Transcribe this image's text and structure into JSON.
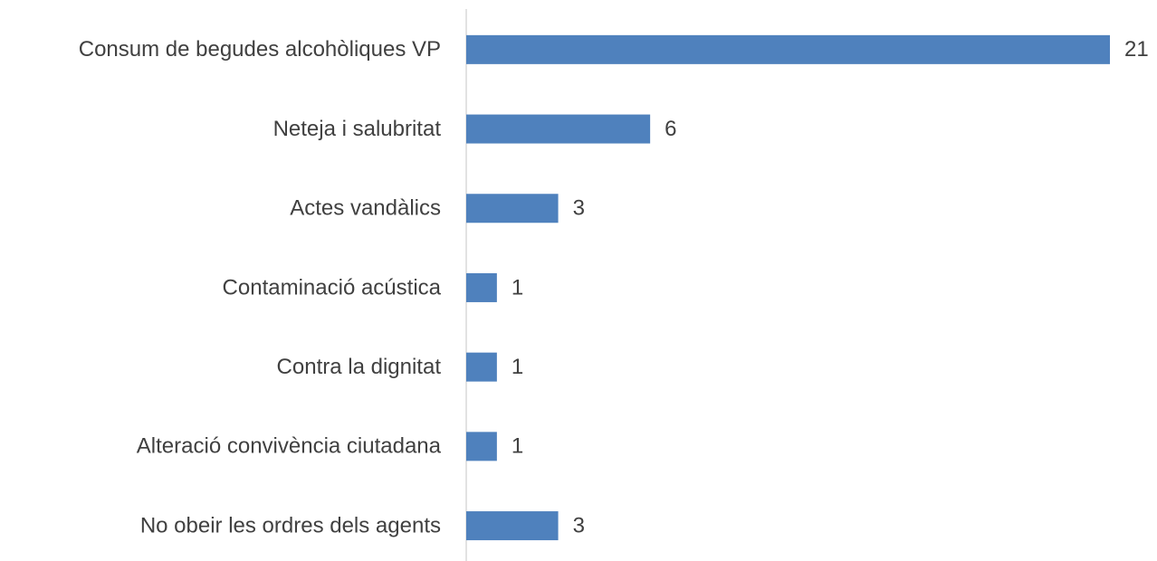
{
  "chart_data": {
    "type": "bar",
    "orientation": "horizontal",
    "categories": [
      "Consum de begudes alcohòliques VP",
      "Neteja i salubritat",
      "Actes vandàlics",
      "Contaminació acústica",
      "Contra la dignitat",
      "Alteració convivència ciutadana",
      "No obeir les ordres dels agents"
    ],
    "values": [
      21,
      6,
      3,
      1,
      1,
      1,
      3
    ],
    "color": "#4f81bd"
  }
}
